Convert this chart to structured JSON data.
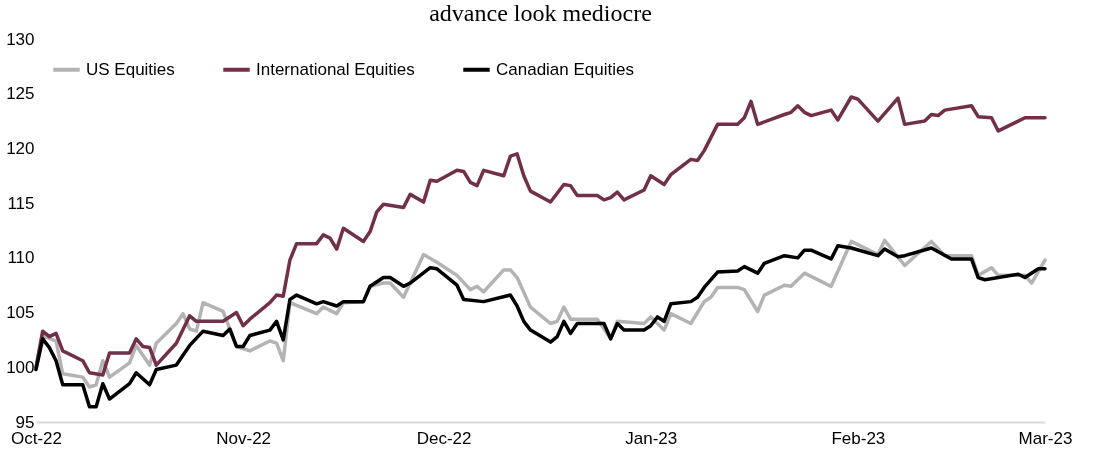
{
  "chart_data": {
    "type": "line",
    "title": "advance look mediocre",
    "xlim": [
      "2022-10-01",
      "2023-03-01"
    ],
    "xticks": [
      {
        "value": "2022-10-01",
        "label": "Oct-22"
      },
      {
        "value": "2022-11-01",
        "label": "Nov-22"
      },
      {
        "value": "2022-12-01",
        "label": "Dec-22"
      },
      {
        "value": "2023-01-01",
        "label": "Jan-23"
      },
      {
        "value": "2023-02-01",
        "label": "Feb-23"
      },
      {
        "value": "2023-03-01",
        "label": "Mar-23"
      }
    ],
    "ylim": [
      95,
      130
    ],
    "yticks": [
      95,
      100,
      105,
      110,
      115,
      120,
      125,
      130
    ],
    "grid": false,
    "legend": "top left",
    "line_style": "solid",
    "marker": "none",
    "series": [
      {
        "name": "US Equities",
        "color": "#b3b3b3",
        "x": [
          "2022-10-01",
          "2022-10-02",
          "2022-10-04",
          "2022-10-05",
          "2022-10-08",
          "2022-10-09",
          "2022-10-10",
          "2022-10-11",
          "2022-10-12",
          "2022-10-15",
          "2022-10-16",
          "2022-10-18",
          "2022-10-19",
          "2022-10-22",
          "2022-10-23",
          "2022-10-24",
          "2022-10-25",
          "2022-10-26",
          "2022-10-29",
          "2022-10-31",
          "2022-11-02",
          "2022-11-05",
          "2022-11-06",
          "2022-11-07",
          "2022-11-08",
          "2022-11-12",
          "2022-11-13",
          "2022-11-15",
          "2022-11-16",
          "2022-11-19",
          "2022-11-20",
          "2022-11-22",
          "2022-11-23",
          "2022-11-25",
          "2022-11-28",
          "2022-11-30",
          "2022-12-03",
          "2022-12-05",
          "2022-12-06",
          "2022-12-07",
          "2022-12-10",
          "2022-12-11",
          "2022-12-12",
          "2022-12-14",
          "2022-12-17",
          "2022-12-18",
          "2022-12-19",
          "2022-12-20",
          "2022-12-24",
          "2022-12-26",
          "2022-12-27",
          "2022-12-31",
          "2023-01-01",
          "2023-01-03",
          "2023-01-04",
          "2023-01-07",
          "2023-01-09",
          "2023-01-10",
          "2023-01-11",
          "2023-01-14",
          "2023-01-15",
          "2023-01-17",
          "2023-01-18",
          "2023-01-21",
          "2023-01-22",
          "2023-01-24",
          "2023-01-28",
          "2023-01-31",
          "2023-02-04",
          "2023-02-05",
          "2023-02-08",
          "2023-02-12",
          "2023-02-14",
          "2023-02-18",
          "2023-02-19",
          "2023-02-21",
          "2023-02-22",
          "2023-02-26",
          "2023-02-27",
          "2023-03-01"
        ],
        "values": [
          99.8,
          102.9,
          102.4,
          99.4,
          99.1,
          98.2,
          98.4,
          100.6,
          99.1,
          100.4,
          102.0,
          100.2,
          102.2,
          104.0,
          104.9,
          103.5,
          103.3,
          105.9,
          105.1,
          101.9,
          101.5,
          102.4,
          102.2,
          100.6,
          105.9,
          104.9,
          105.5,
          104.9,
          105.9,
          106.0,
          107.4,
          107.7,
          107.7,
          106.4,
          110.3,
          109.6,
          108.4,
          107.1,
          107.4,
          106.9,
          108.9,
          108.9,
          108.2,
          105.5,
          104.0,
          104.2,
          105.5,
          104.4,
          104.4,
          102.6,
          104.2,
          104.0,
          104.6,
          103.4,
          104.9,
          104.0,
          106.0,
          106.4,
          107.3,
          107.3,
          107.1,
          105.1,
          106.6,
          107.5,
          107.4,
          108.6,
          107.4,
          111.5,
          110.3,
          111.6,
          109.3,
          111.5,
          110.2,
          110.2,
          108.4,
          109.1,
          108.4,
          108.4,
          107.7,
          109.8
        ]
      },
      {
        "name": "International Equities",
        "color": "#722f49",
        "x": [
          "2022-10-01",
          "2022-10-02",
          "2022-10-03",
          "2022-10-04",
          "2022-10-05",
          "2022-10-08",
          "2022-10-09",
          "2022-10-11",
          "2022-10-12",
          "2022-10-15",
          "2022-10-16",
          "2022-10-17",
          "2022-10-18",
          "2022-10-19",
          "2022-10-22",
          "2022-10-24",
          "2022-10-25",
          "2022-10-29",
          "2022-10-31",
          "2022-11-01",
          "2022-11-02",
          "2022-11-05",
          "2022-11-06",
          "2022-11-07",
          "2022-11-08",
          "2022-11-09",
          "2022-11-12",
          "2022-11-13",
          "2022-11-14",
          "2022-11-15",
          "2022-11-16",
          "2022-11-19",
          "2022-11-20",
          "2022-11-21",
          "2022-11-22",
          "2022-11-25",
          "2022-11-26",
          "2022-11-28",
          "2022-11-29",
          "2022-11-30",
          "2022-12-03",
          "2022-12-04",
          "2022-12-05",
          "2022-12-06",
          "2022-12-07",
          "2022-12-10",
          "2022-12-11",
          "2022-12-12",
          "2022-12-13",
          "2022-12-14",
          "2022-12-17",
          "2022-12-19",
          "2022-12-20",
          "2022-12-21",
          "2022-12-24",
          "2022-12-25",
          "2022-12-26",
          "2022-12-27",
          "2022-12-28",
          "2022-12-31",
          "2023-01-01",
          "2023-01-03",
          "2023-01-04",
          "2023-01-07",
          "2023-01-08",
          "2023-01-09",
          "2023-01-11",
          "2023-01-14",
          "2023-01-15",
          "2023-01-16",
          "2023-01-17",
          "2023-01-21",
          "2023-01-22",
          "2023-01-23",
          "2023-01-24",
          "2023-01-25",
          "2023-01-28",
          "2023-01-29",
          "2023-01-31",
          "2023-02-01",
          "2023-02-04",
          "2023-02-07",
          "2023-02-08",
          "2023-02-11",
          "2023-02-12",
          "2023-02-13",
          "2023-02-14",
          "2023-02-18",
          "2023-02-19",
          "2023-02-21",
          "2023-02-22",
          "2023-02-26",
          "2023-02-28",
          "2023-03-01"
        ],
        "values": [
          100.0,
          103.3,
          102.8,
          103.1,
          101.5,
          100.6,
          99.5,
          99.3,
          101.3,
          101.3,
          102.6,
          101.9,
          101.8,
          100.2,
          102.2,
          104.7,
          104.2,
          104.2,
          105.0,
          103.8,
          104.4,
          105.9,
          106.6,
          106.5,
          109.8,
          111.3,
          111.3,
          112.1,
          111.8,
          110.8,
          112.7,
          111.5,
          112.4,
          114.2,
          114.9,
          114.6,
          115.8,
          115.1,
          117.1,
          117.0,
          118.0,
          117.9,
          116.9,
          116.6,
          118.0,
          117.5,
          119.3,
          119.5,
          117.5,
          116.1,
          115.1,
          116.7,
          116.6,
          115.7,
          115.7,
          115.3,
          115.5,
          116.0,
          115.3,
          116.2,
          117.5,
          116.7,
          117.6,
          119.0,
          118.9,
          119.8,
          122.2,
          122.2,
          122.8,
          124.3,
          122.2,
          123.1,
          123.3,
          123.9,
          123.3,
          123.0,
          123.5,
          122.6,
          124.7,
          124.5,
          122.5,
          124.6,
          122.2,
          122.5,
          123.1,
          123.0,
          123.5,
          123.9,
          122.9,
          122.8,
          121.6,
          122.8,
          122.8,
          122.8
        ]
      },
      {
        "name": "Canadian Equities",
        "color": "#000000",
        "x": [
          "2022-10-01",
          "2022-10-02",
          "2022-10-03",
          "2022-10-04",
          "2022-10-05",
          "2022-10-08",
          "2022-10-09",
          "2022-10-10",
          "2022-10-11",
          "2022-10-12",
          "2022-10-15",
          "2022-10-16",
          "2022-10-18",
          "2022-10-19",
          "2022-10-22",
          "2022-10-24",
          "2022-10-26",
          "2022-10-29",
          "2022-10-30",
          "2022-10-31",
          "2022-11-01",
          "2022-11-02",
          "2022-11-05",
          "2022-11-06",
          "2022-11-07",
          "2022-11-08",
          "2022-11-09",
          "2022-11-12",
          "2022-11-13",
          "2022-11-15",
          "2022-11-16",
          "2022-11-19",
          "2022-11-20",
          "2022-11-22",
          "2022-11-23",
          "2022-11-25",
          "2022-11-26",
          "2022-11-29",
          "2022-11-30",
          "2022-12-03",
          "2022-12-04",
          "2022-12-07",
          "2022-12-11",
          "2022-12-12",
          "2022-12-13",
          "2022-12-14",
          "2022-12-17",
          "2022-12-18",
          "2022-12-19",
          "2022-12-20",
          "2022-12-21",
          "2022-12-25",
          "2022-12-26",
          "2022-12-27",
          "2022-12-28",
          "2022-12-31",
          "2023-01-01",
          "2023-01-02",
          "2023-01-03",
          "2023-01-04",
          "2023-01-07",
          "2023-01-08",
          "2023-01-09",
          "2023-01-11",
          "2023-01-14",
          "2023-01-15",
          "2023-01-17",
          "2023-01-18",
          "2023-01-21",
          "2023-01-23",
          "2023-01-24",
          "2023-01-25",
          "2023-01-28",
          "2023-01-29",
          "2023-01-31",
          "2023-02-04",
          "2023-02-05",
          "2023-02-07",
          "2023-02-08",
          "2023-02-12",
          "2023-02-15",
          "2023-02-18",
          "2023-02-19",
          "2023-02-20",
          "2023-02-25",
          "2023-02-26",
          "2023-02-28",
          "2023-03-01"
        ],
        "values": [
          99.8,
          102.6,
          101.8,
          100.6,
          98.4,
          98.4,
          96.4,
          96.4,
          98.5,
          97.1,
          98.5,
          99.5,
          98.4,
          99.8,
          100.2,
          102.0,
          103.3,
          102.9,
          103.5,
          101.9,
          101.9,
          102.9,
          103.4,
          104.2,
          102.5,
          106.2,
          106.6,
          105.8,
          106.0,
          105.6,
          106.0,
          106.0,
          107.4,
          108.2,
          108.2,
          107.4,
          107.7,
          109.1,
          109.0,
          107.5,
          106.2,
          106.0,
          106.6,
          105.6,
          104.2,
          103.4,
          102.3,
          102.8,
          104.2,
          103.1,
          104.0,
          104.0,
          102.6,
          104.0,
          103.4,
          103.4,
          103.8,
          104.6,
          104.2,
          105.8,
          106.0,
          106.4,
          107.3,
          108.7,
          108.8,
          109.2,
          108.6,
          109.5,
          110.2,
          110.0,
          110.7,
          110.7,
          109.9,
          111.1,
          110.9,
          110.2,
          110.8,
          110.1,
          110.2,
          110.9,
          109.9,
          109.9,
          108.2,
          108.0,
          108.5,
          108.2,
          109.0,
          109.0
        ]
      }
    ]
  }
}
